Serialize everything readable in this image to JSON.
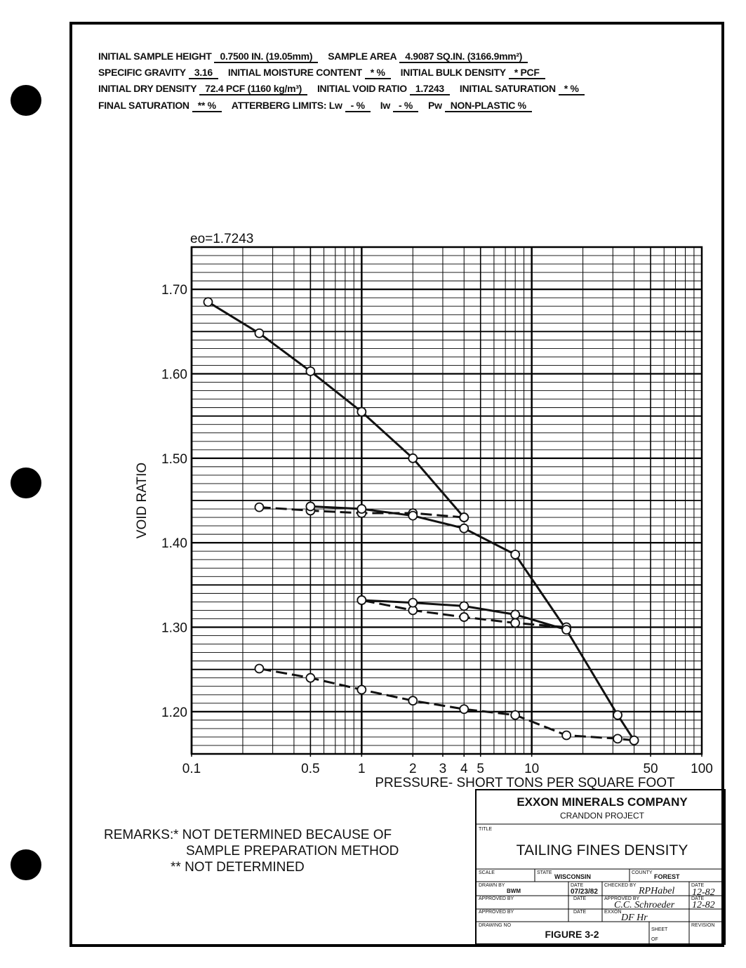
{
  "header": {
    "rows": [
      [
        {
          "label": "INITIAL SAMPLE HEIGHT",
          "value": "0.7500 IN. (19.05mm)"
        },
        {
          "label": "SAMPLE AREA",
          "value": "4.9087 SQ.IN. (3166.9mm²)"
        }
      ],
      [
        {
          "label": "SPECIFIC GRAVITY",
          "value": "3.16"
        },
        {
          "label": "INITIAL MOISTURE CONTENT",
          "value": "* %"
        },
        {
          "label": "INITIAL BULK DENSITY",
          "value": "* PCF"
        }
      ],
      [
        {
          "label": "INITIAL DRY DENSITY",
          "value": "72.4 PCF (1160 kg/m³)"
        },
        {
          "label": "INITIAL VOID RATIO",
          "value": "1.7243"
        },
        {
          "label": "INITIAL SATURATION",
          "value": "* %"
        }
      ],
      [
        {
          "label": "FINAL SATURATION",
          "value": "** %"
        },
        {
          "label": "ATTERBERG LIMITS: Lw",
          "value": "- %"
        },
        {
          "label": "Iw",
          "value": "- %"
        },
        {
          "label": "Pw",
          "value": "NON-PLASTIC %"
        }
      ]
    ]
  },
  "chart_data": {
    "type": "line",
    "xscale": "log",
    "grid": true,
    "annotation": "eo=1.7243",
    "ylabel": "VOID RATIO",
    "xlabel": "PRESSURE- SHORT TONS PER SQUARE FOOT",
    "xlim": [
      0.1,
      100
    ],
    "xticks": [
      0.1,
      0.5,
      1,
      2,
      3,
      4,
      5,
      10,
      50,
      100
    ],
    "ylim": [
      1.15,
      1.75
    ],
    "yticks": [
      {
        "value": 1.2,
        "label": "1.20"
      },
      {
        "value": 1.3,
        "label": "1.30"
      },
      {
        "value": 1.4,
        "label": "1.40"
      },
      {
        "value": 1.5,
        "label": "1.50"
      },
      {
        "value": 1.6,
        "label": "1.60"
      },
      {
        "value": 1.7,
        "label": "1.70"
      }
    ],
    "color": "#111111",
    "series": [
      {
        "style": "solid",
        "x": [
          0.125,
          0.25,
          0.5,
          1,
          2,
          4
        ],
        "values": [
          1.685,
          1.648,
          1.603,
          1.555,
          1.5,
          1.43
        ]
      },
      {
        "style": "dashed",
        "x": [
          4,
          2,
          1,
          0.5,
          0.25
        ],
        "values": [
          1.43,
          1.435,
          1.435,
          1.438,
          1.442
        ]
      },
      {
        "style": "solid",
        "x": [
          0.5,
          1,
          2,
          4,
          8,
          16
        ],
        "values": [
          1.443,
          1.44,
          1.432,
          1.417,
          1.386,
          1.297
        ]
      },
      {
        "style": "dashed",
        "x": [
          16,
          8,
          4,
          2,
          1
        ],
        "values": [
          1.3,
          1.305,
          1.312,
          1.32,
          1.332
        ]
      },
      {
        "style": "solid",
        "x": [
          1,
          2,
          4,
          8,
          16,
          32,
          40
        ],
        "values": [
          1.332,
          1.329,
          1.325,
          1.315,
          1.297,
          1.196,
          1.166
        ]
      },
      {
        "style": "dashed",
        "x": [
          40,
          32,
          16,
          8,
          4,
          2,
          1,
          0.5,
          0.25
        ],
        "values": [
          1.166,
          1.168,
          1.172,
          1.196,
          1.203,
          1.213,
          1.226,
          1.24,
          1.251
        ]
      }
    ]
  },
  "remarks": {
    "label": "REMARKS:",
    "lines": [
      "* NOT DETERMINED BECAUSE OF",
      "SAMPLE PREPARATION METHOD",
      "** NOT DETERMINED"
    ]
  },
  "title_block": {
    "company": "EXXON MINERALS COMPANY",
    "project": "CRANDON PROJECT",
    "title_label": "TITLE",
    "title": "TAILING FINES DENSITY",
    "scale_label": "SCALE",
    "state_label": "STATE",
    "state": "WISCONSIN",
    "county_label": "COUNTY",
    "county": "FOREST",
    "drawn_by_label": "DRAWN BY",
    "drawn_by": "BWM",
    "date_label": "DATE",
    "drawn_date": "07/23/82",
    "checked_by_label": "CHECKED BY",
    "checked_by": "RPHabel",
    "checked_date": "12-82",
    "approved_by_label": "APPROVED BY",
    "approved_by": "C.C. Schroeder",
    "approved_date": "12-82",
    "exxon_label": "EXXON",
    "exxon": "DF Hr",
    "drawing_no_label": "DRAWING NO",
    "figure": "FIGURE 3-2",
    "sheet_label": "SHEET",
    "of_label": "OF",
    "revision_label": "REVISION"
  }
}
